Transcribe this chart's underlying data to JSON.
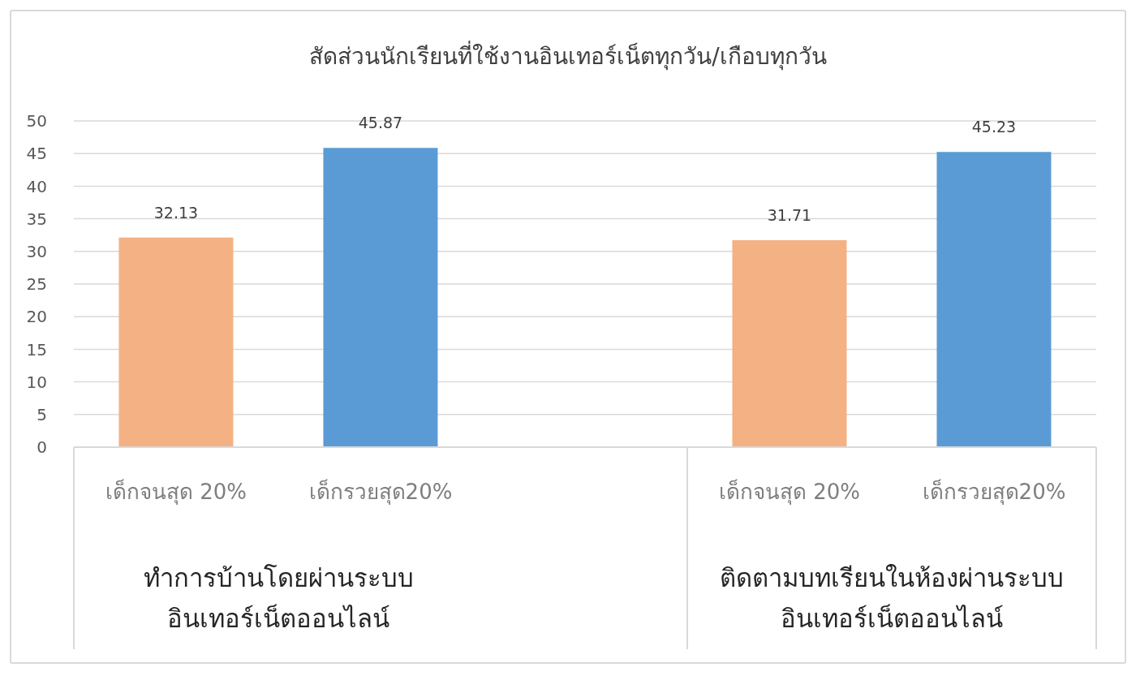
{
  "chart_data": {
    "type": "bar",
    "title": "สัดส่วนนักเรียนที่ใช้งานอินเทอร์เน็ตทุกวัน/เกือบทุกวัน",
    "categories": [
      "เด็กจนสุด 20%",
      "เด็กรวยสุด20%",
      null,
      "เด็กจนสุด 20%",
      "เด็กรวยสุด20%"
    ],
    "values": [
      32.13,
      45.87,
      null,
      31.71,
      45.23
    ],
    "colors": [
      "#f4b183",
      "#5b9bd5",
      null,
      "#f4b183",
      "#5b9bd5"
    ],
    "ylim": [
      0,
      50
    ],
    "yticks": [
      0,
      5,
      10,
      15,
      20,
      25,
      30,
      35,
      40,
      45,
      50
    ],
    "grid": "y",
    "data_labels": true,
    "annotations": [
      "ทำการบ้านโดยผ่านระบบ อินเทอร์เน็ตออนไลน์",
      "ติดตามบทเรียนในห้องผ่านระบบ อินเทอร์เน็ตออนไลน์"
    ]
  }
}
